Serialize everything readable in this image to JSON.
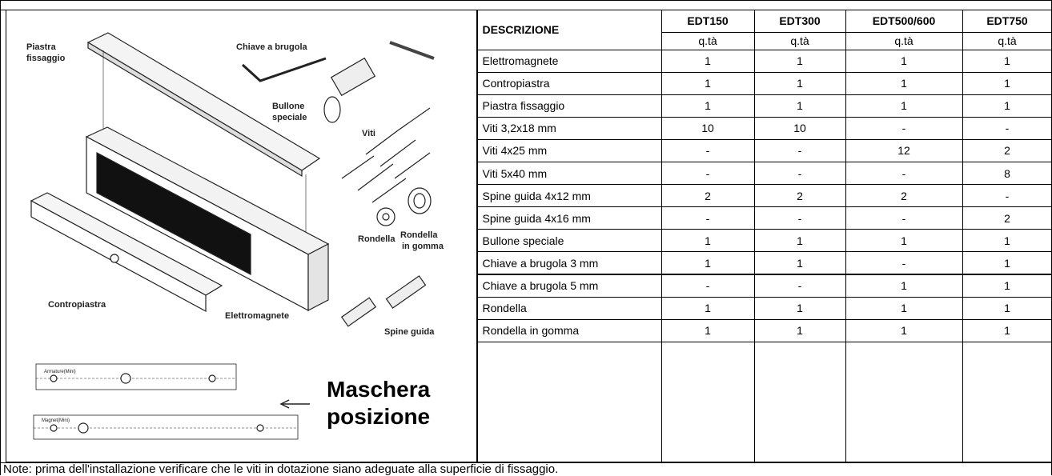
{
  "drawing": {
    "labels": [
      {
        "lines": [
          "Piastra",
          "fissaggio"
        ]
      },
      {
        "lines": [
          "Chiave a brugola"
        ]
      },
      {
        "lines": [
          "Bullone",
          "speciale"
        ]
      },
      {
        "lines": [
          "Viti"
        ]
      },
      {
        "lines": [
          "Rondella"
        ]
      },
      {
        "lines": [
          "Rondella",
          "in gomma"
        ]
      },
      {
        "lines": [
          "Contropiastra"
        ]
      },
      {
        "lines": [
          "Elettromagnete"
        ]
      },
      {
        "lines": [
          "Spine guida"
        ]
      },
      {
        "lines": [
          "Armature(Mini)"
        ]
      },
      {
        "lines": [
          "Magnet(Mini)"
        ]
      },
      {
        "lines": [
          "Maschera",
          "posizione"
        ]
      }
    ]
  },
  "table": {
    "header": {
      "description": "DESCRIZIONE",
      "models": [
        "EDT150",
        "EDT300",
        "EDT500/600",
        "EDT750"
      ],
      "units": [
        "q.tà",
        "q.tà",
        "q.tà",
        "q.tà"
      ]
    },
    "rows": [
      {
        "item": "Elettromagnete",
        "qty": [
          "1",
          "1",
          "1",
          "1"
        ]
      },
      {
        "item": "Contropiastra",
        "qty": [
          "1",
          "1",
          "1",
          "1"
        ]
      },
      {
        "item": "Piastra fissaggio",
        "qty": [
          "1",
          "1",
          "1",
          "1"
        ]
      },
      {
        "item": "Viti 3,2x18 mm",
        "qty": [
          "10",
          "10",
          "-",
          "-"
        ]
      },
      {
        "item": "Viti 4x25 mm",
        "qty": [
          "-",
          "-",
          "12",
          "2"
        ]
      },
      {
        "item": "Viti 5x40 mm",
        "qty": [
          "-",
          "-",
          "-",
          "8"
        ]
      },
      {
        "item": "Spine guida 4x12 mm",
        "qty": [
          "2",
          "2",
          "2",
          "-"
        ]
      },
      {
        "item": "Spine guida 4x16 mm",
        "qty": [
          "-",
          "-",
          "-",
          "2"
        ]
      },
      {
        "item": "Bullone speciale",
        "qty": [
          "1",
          "1",
          "1",
          "1"
        ]
      },
      {
        "item": "Chiave a brugola 3 mm",
        "qty": [
          "1",
          "1",
          "-",
          "1"
        ]
      },
      {
        "item": "Chiave a brugola 5 mm",
        "qty": [
          "-",
          "-",
          "1",
          "1"
        ]
      },
      {
        "item": "Rondella",
        "qty": [
          "1",
          "1",
          "1",
          "1"
        ]
      },
      {
        "item": "Rondella in gomma",
        "qty": [
          "1",
          "1",
          "1",
          "1"
        ]
      }
    ]
  },
  "note": "Note: prima dell'installazione verificare che le viti in dotazione siano adeguate alla superficie di fissaggio."
}
